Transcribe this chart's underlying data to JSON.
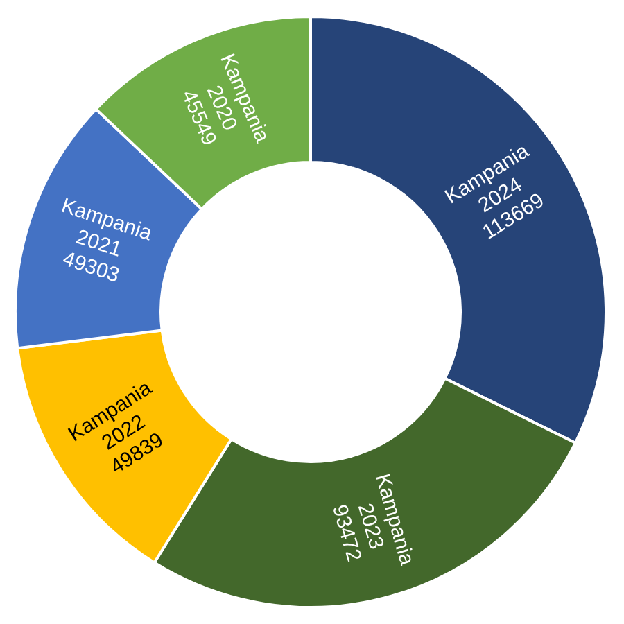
{
  "chart_data": {
    "type": "donut",
    "categories": [
      "Kampania 2024",
      "Kampania 2023",
      "Kampania 2022",
      "Kampania 2021",
      "Kampania 2020"
    ],
    "values": [
      113669,
      93472,
      49839,
      49303,
      45549
    ],
    "colors": [
      "#264478",
      "#43682b",
      "#ffc000",
      "#4472c4",
      "#70ad47"
    ],
    "data_labels": true
  }
}
